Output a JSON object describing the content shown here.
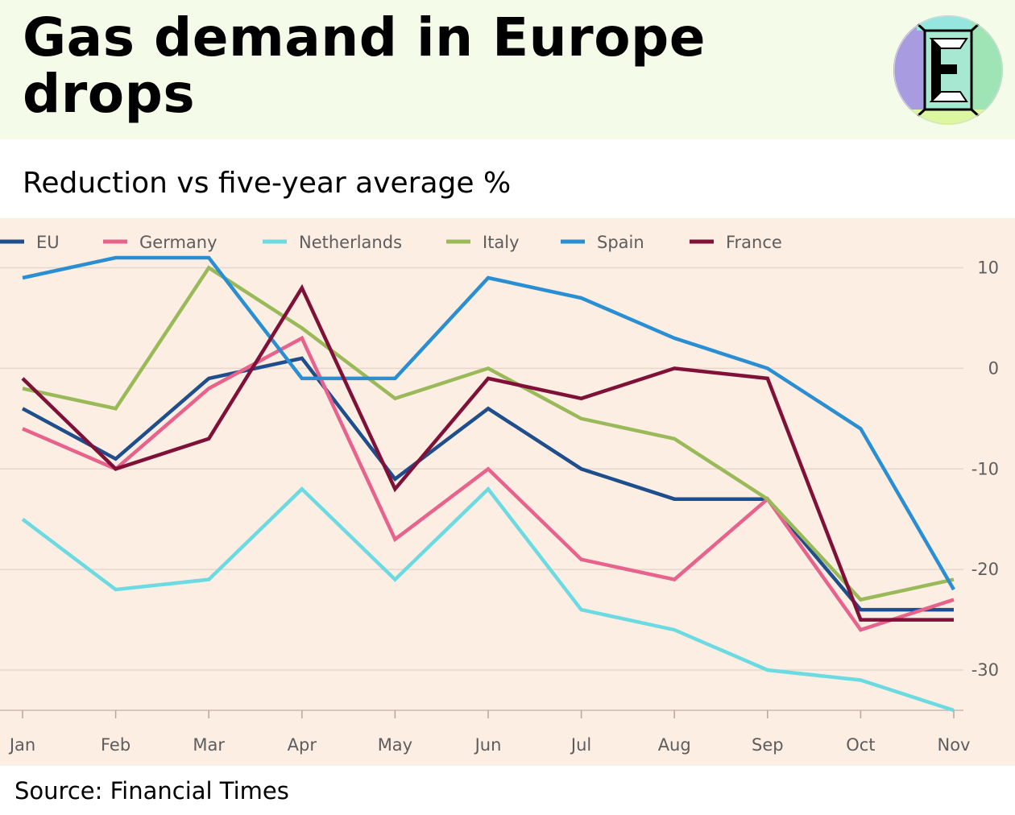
{
  "header": {
    "title": "Gas demand in Europe drops",
    "subtitle": "Reduction vs five-year average %",
    "logo_letter": "E",
    "background_color": "#f4fbe9"
  },
  "source": "Source: Financial Times",
  "chart_data": {
    "type": "line",
    "x": [
      "Jan",
      "Feb",
      "Mar",
      "Apr",
      "May",
      "Jun",
      "Jul",
      "Aug",
      "Sep",
      "Oct",
      "Nov"
    ],
    "ylim": [
      -34,
      11
    ],
    "yticks": [
      10,
      0,
      -10,
      -20,
      -30
    ],
    "grid": true,
    "legend_position": "top-left",
    "background_color": "#fdeee4",
    "series": [
      {
        "name": "EU",
        "color": "#1f4e8c",
        "values": [
          -4,
          -9,
          -1,
          1,
          -11,
          -4,
          -10,
          -13,
          -13,
          -24,
          -24
        ]
      },
      {
        "name": "Germany",
        "color": "#e7628c",
        "values": [
          -6,
          -10,
          -2,
          3,
          -17,
          -10,
          -19,
          -21,
          -13,
          -26,
          -23
        ]
      },
      {
        "name": "Netherlands",
        "color": "#6bdbe1",
        "values": [
          -15,
          -22,
          -21,
          -12,
          -21,
          -12,
          -24,
          -26,
          -30,
          -31,
          -34
        ]
      },
      {
        "name": "Italy",
        "color": "#9aba5a",
        "values": [
          -2,
          -4,
          10,
          4,
          -3,
          0,
          -5,
          -7,
          -13,
          -23,
          -21
        ]
      },
      {
        "name": "Spain",
        "color": "#2a8ed2",
        "values": [
          9,
          11,
          11,
          -1,
          -1,
          9,
          7,
          3,
          0,
          -6,
          -22
        ]
      },
      {
        "name": "France",
        "color": "#7f1038",
        "values": [
          -1,
          -10,
          -7,
          8,
          -12,
          -1,
          -3,
          0,
          -1,
          -25,
          -25
        ]
      }
    ]
  }
}
